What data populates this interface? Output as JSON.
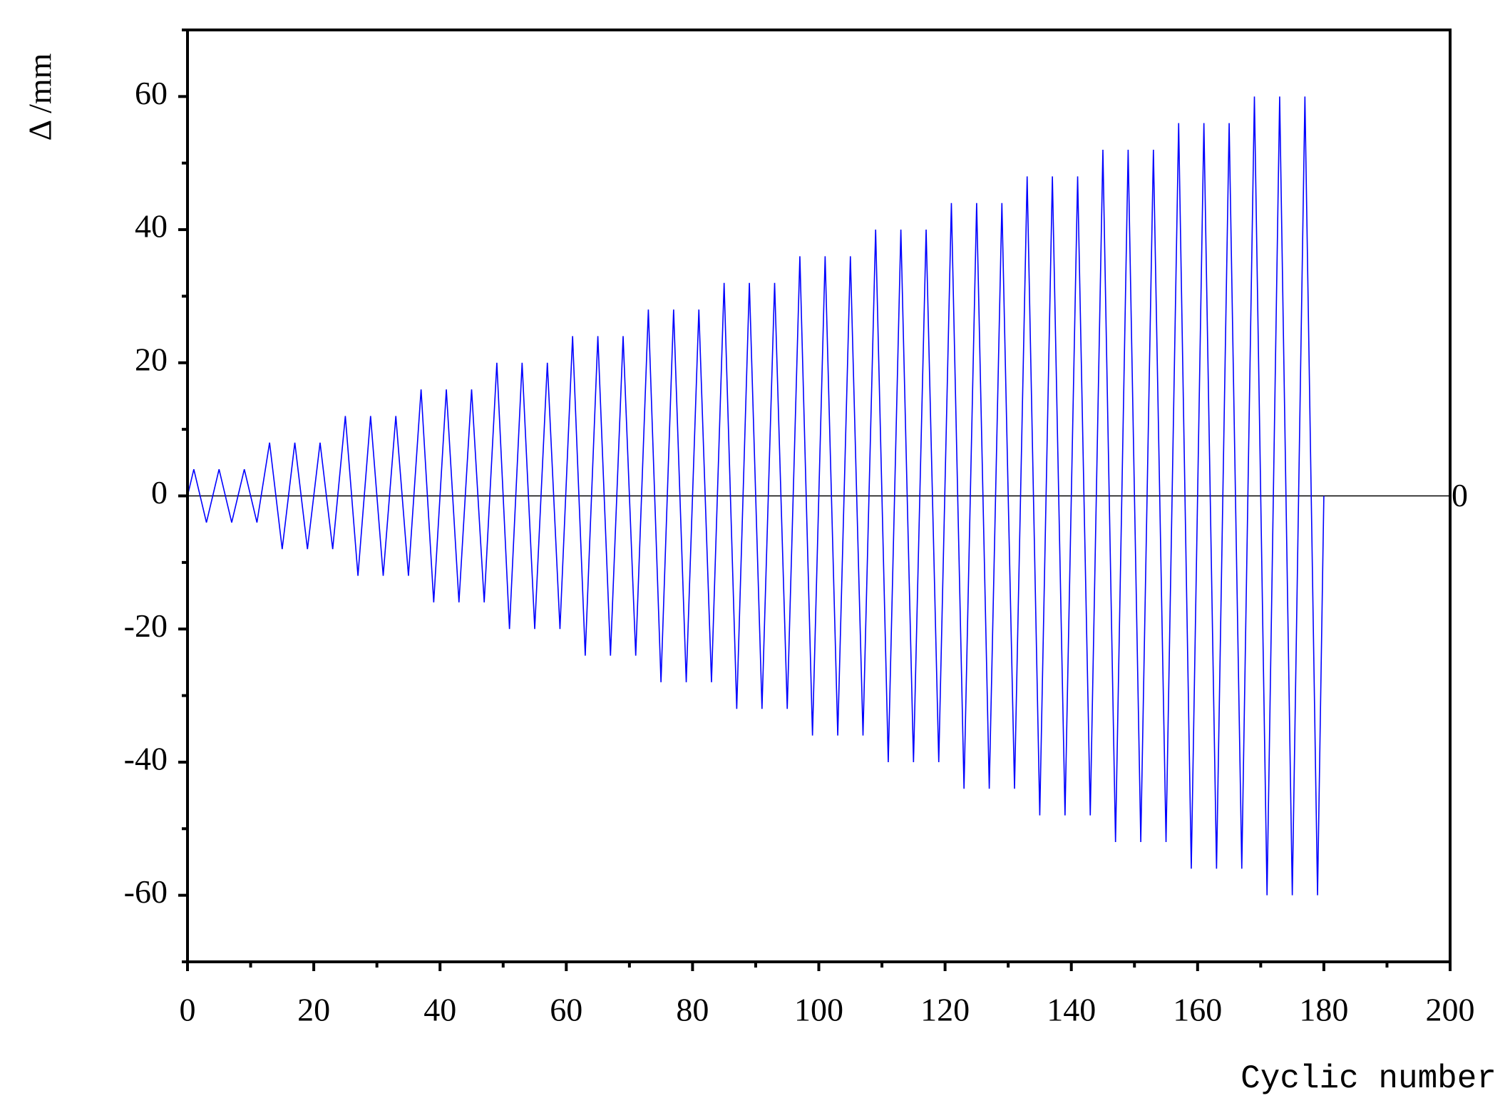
{
  "chart_data": {
    "type": "line",
    "x_label": "Cyclic number",
    "y_label": "Δ /mm",
    "x": [
      0,
      1,
      3,
      5,
      7,
      9,
      11,
      13,
      15,
      17,
      19,
      21,
      23,
      25,
      27,
      29,
      31,
      33,
      35,
      37,
      39,
      41,
      43,
      45,
      47,
      49,
      51,
      53,
      55,
      57,
      59,
      61,
      63,
      65,
      67,
      69,
      71,
      73,
      75,
      77,
      79,
      81,
      83,
      85,
      87,
      89,
      91,
      93,
      95,
      97,
      99,
      101,
      103,
      105,
      107,
      109,
      111,
      113,
      115,
      117,
      119,
      121,
      123,
      125,
      127,
      129,
      131,
      133,
      135,
      137,
      139,
      141,
      143,
      145,
      147,
      149,
      151,
      153,
      155,
      157,
      159,
      161,
      163,
      165,
      167,
      169,
      171,
      173,
      175,
      177,
      179,
      180
    ],
    "values": [
      0,
      4,
      -4,
      4,
      -4,
      4,
      -4,
      8,
      -8,
      8,
      -8,
      8,
      -8,
      12,
      -12,
      12,
      -12,
      12,
      -12,
      16,
      -16,
      16,
      -16,
      16,
      -16,
      20,
      -20,
      20,
      -20,
      20,
      -20,
      24,
      -24,
      24,
      -24,
      24,
      -24,
      28,
      -28,
      28,
      -28,
      28,
      -28,
      32,
      -32,
      32,
      -32,
      32,
      -32,
      36,
      -36,
      36,
      -36,
      36,
      -36,
      40,
      -40,
      40,
      -40,
      40,
      -40,
      44,
      -44,
      44,
      -44,
      44,
      -44,
      48,
      -48,
      48,
      -48,
      48,
      -48,
      52,
      -52,
      52,
      -52,
      52,
      -52,
      56,
      -56,
      56,
      -56,
      56,
      -56,
      60,
      -60,
      60,
      -60,
      60,
      -60,
      0
    ],
    "color": "#0000ff",
    "reference_line": 0,
    "xlim": [
      0,
      200
    ],
    "xticks": [
      0,
      20,
      40,
      60,
      80,
      100,
      120,
      140,
      160,
      180,
      200
    ],
    "xminorticks": [
      10,
      30,
      50,
      70,
      90,
      110,
      130,
      150,
      170,
      190
    ],
    "ylim": [
      -70,
      70
    ],
    "yticks": [
      -60,
      -40,
      -20,
      0,
      20,
      40,
      60
    ],
    "yminorticks": [
      -70,
      -50,
      -30,
      -10,
      10,
      30,
      50,
      70
    ]
  }
}
